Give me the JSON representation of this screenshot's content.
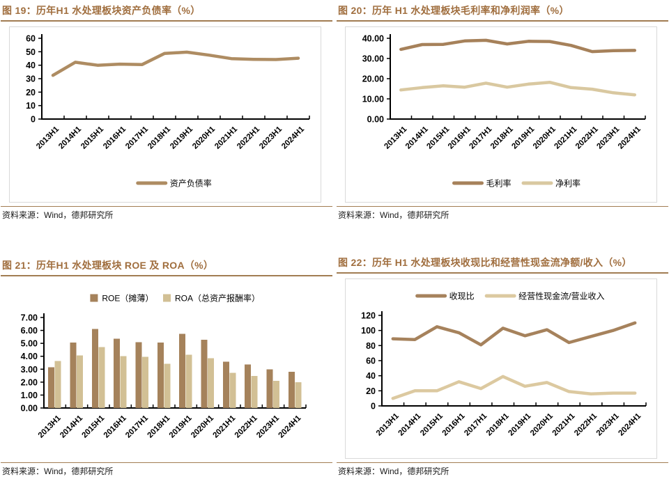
{
  "palette": {
    "title_brown": "#A06E3E",
    "rule_brown": "#A17C52",
    "box_border": "#D9D9D9",
    "axis_black": "#000000",
    "dark_series": "#A6825B",
    "light_series": "#D8C69E"
  },
  "chart_data": [
    {
      "id": "figure-19",
      "type": "line",
      "title": "图 19：历年H1 水处理板块资产负债率（%）",
      "source": "资料来源：Wind，德邦研究所",
      "categories": [
        "2013H1",
        "2014H1",
        "2015H1",
        "2016H1",
        "2017H1",
        "2018H1",
        "2019H1",
        "2020H1",
        "2021H1",
        "2022H1",
        "2023H1",
        "2024H1"
      ],
      "series": [
        {
          "name": "资产负债率",
          "color": "#AE8C62",
          "values": [
            32.5,
            42.2,
            40.0,
            40.8,
            40.5,
            48.7,
            49.7,
            47.5,
            44.9,
            44.4,
            44.2,
            45.2
          ]
        }
      ],
      "ylim": [
        0,
        60
      ],
      "yticks": [
        0,
        10,
        20,
        30,
        40,
        50,
        60
      ],
      "ytick_labels": [
        "0",
        "10",
        "20",
        "30",
        "40",
        "50",
        "60"
      ],
      "legend_position": "bottom",
      "grid": "off",
      "boxed": true
    },
    {
      "id": "figure-20",
      "type": "line",
      "title": "图 20：历年 H1 水处理板块毛利率和净利润率（%）",
      "source": "资料来源：Wind，德邦研究所",
      "categories": [
        "2013H1",
        "2014H1",
        "2015H1",
        "2016H1",
        "2017H1",
        "2018H1",
        "2019H1",
        "2020H1",
        "2021H1",
        "2022H1",
        "2023H1",
        "2024H1"
      ],
      "series": [
        {
          "name": "毛利率",
          "color": "#A6815A",
          "values": [
            34.5,
            36.9,
            37.0,
            38.7,
            39.0,
            37.2,
            38.5,
            38.4,
            36.5,
            33.4,
            33.9,
            34.0
          ]
        },
        {
          "name": "净利率",
          "color": "#D9C8A0",
          "values": [
            14.4,
            15.6,
            16.5,
            15.8,
            17.8,
            15.8,
            17.3,
            18.2,
            15.6,
            14.8,
            13.0,
            12.0
          ]
        }
      ],
      "ylim": [
        0,
        40
      ],
      "yticks": [
        0,
        10,
        20,
        30,
        40
      ],
      "ytick_labels": [
        "0.00",
        "10.00",
        "20.00",
        "30.00",
        "40.00"
      ],
      "legend_position": "bottom",
      "grid": "off",
      "boxed": true
    },
    {
      "id": "figure-21",
      "type": "bar",
      "title": "图 21：历年H1 水处理板块 ROE 及 ROA（%）",
      "source": "资料来源：Wind，德邦研究所",
      "categories": [
        "2013H1",
        "2014H1",
        "2015H1",
        "2016H1",
        "2017H1",
        "2018H1",
        "2019H1",
        "2020H1",
        "2021H1",
        "2022H1",
        "2023H1",
        "2024H1"
      ],
      "series": [
        {
          "name": "ROE（摊薄）",
          "color": "#A5825B",
          "values": [
            3.15,
            5.05,
            6.1,
            5.36,
            5.1,
            5.05,
            5.73,
            5.27,
            3.59,
            3.37,
            2.99,
            2.79
          ]
        },
        {
          "name": "ROA（总资产报酬率）",
          "color": "#D2C095",
          "values": [
            3.64,
            4.06,
            4.71,
            4.01,
            3.95,
            3.42,
            4.11,
            3.85,
            2.73,
            2.47,
            2.1,
            2.0
          ]
        }
      ],
      "ylim": [
        0,
        7
      ],
      "yticks": [
        0,
        1,
        2,
        3,
        4,
        5,
        6,
        7
      ],
      "ytick_labels": [
        "0.00",
        "1.00",
        "2.00",
        "3.00",
        "4.00",
        "5.00",
        "6.00",
        "7.00"
      ],
      "legend_position": "top",
      "grid": "off",
      "boxed": false
    },
    {
      "id": "figure-22",
      "type": "line",
      "title": "图 22：历年 H1 水处理板块收现比和经营性现金流净额/收入（%）",
      "source": "资料来源：Wind，德邦研究所",
      "categories": [
        "2013H1",
        "2014H1",
        "2015H1",
        "2016H1",
        "2017H1",
        "2018H1",
        "2019H1",
        "2020H1",
        "2021H1",
        "2022H1",
        "2023H1",
        "2024H1"
      ],
      "series": [
        {
          "name": "收现比",
          "color": "#A6825C",
          "values": [
            89,
            88,
            105,
            97,
            81,
            103,
            93,
            101,
            84,
            92,
            100,
            110
          ]
        },
        {
          "name": "经营性现金流/营业收入",
          "color": "#DCC9A0",
          "values": [
            10,
            20,
            20,
            32,
            23,
            39,
            26,
            31,
            19,
            16,
            17,
            17
          ]
        }
      ],
      "ylim": [
        0,
        120
      ],
      "yticks": [
        0,
        20,
        40,
        60,
        80,
        100,
        120
      ],
      "ytick_labels": [
        "0",
        "20",
        "40",
        "60",
        "80",
        "100",
        "120"
      ],
      "legend_position": "top",
      "grid": "off",
      "boxed": true
    }
  ]
}
